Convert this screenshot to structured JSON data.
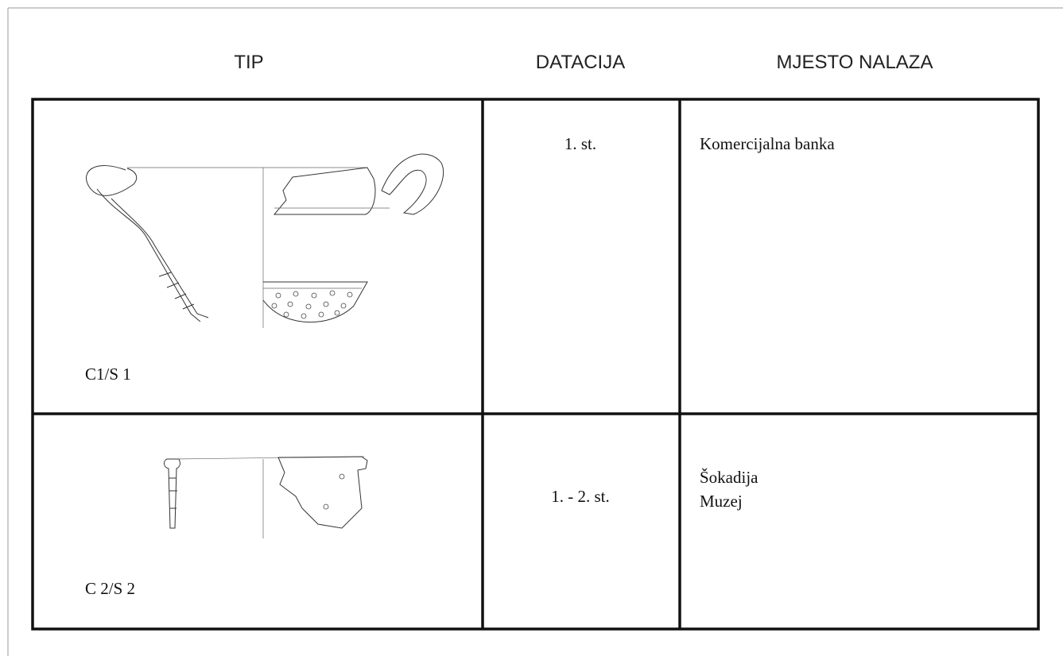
{
  "table": {
    "headers": [
      "TIP",
      "DATACIJA",
      "MJESTO NALAZA"
    ],
    "rows": [
      {
        "tip": "C1/S 1",
        "datacija": "1. st.",
        "mjesto": [
          "Komercijalna banka"
        ]
      },
      {
        "tip": "C 2/S 2",
        "datacija": "1. - 2. st.",
        "mjesto": [
          "Šokadija",
          "Muzej"
        ]
      }
    ]
  }
}
